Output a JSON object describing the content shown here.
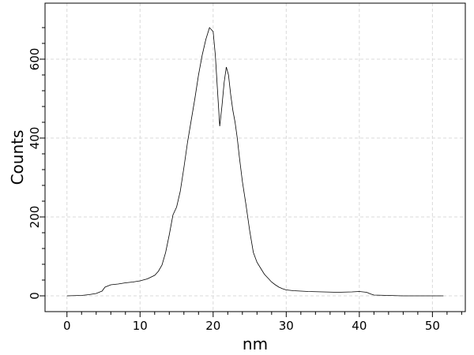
{
  "chart_data": {
    "type": "line",
    "title": "",
    "xlabel": "nm",
    "ylabel": "Counts",
    "xlim": [
      -3,
      54.5
    ],
    "ylim": [
      -40,
      742
    ],
    "grid": true,
    "x_ticks": [
      0,
      10,
      20,
      30,
      40,
      50
    ],
    "y_ticks": [
      0,
      200,
      400,
      600
    ],
    "series": [
      {
        "x": [
          0,
          2,
          3,
          4,
          4.8,
          5.2,
          6,
          7,
          8,
          9,
          10,
          11,
          12,
          12.5,
          13,
          13.5,
          14,
          14.5,
          15,
          15.5,
          16,
          16.5,
          17,
          17.5,
          18,
          18.5,
          19,
          19.5,
          20,
          20.3,
          20.6,
          20.9,
          21.2,
          21.5,
          21.8,
          22.1,
          22.4,
          22.7,
          23,
          23.3,
          23.6,
          24,
          24.5,
          25,
          25.5,
          26,
          26.5,
          27,
          27.5,
          28,
          28.5,
          29,
          29.5,
          30,
          31,
          32,
          33,
          35,
          37,
          39,
          40,
          41,
          41.5,
          42,
          44,
          46,
          48,
          50,
          51.5
        ],
        "y": [
          0,
          1,
          3,
          6,
          12,
          22,
          28,
          30,
          33,
          35,
          38,
          43,
          52,
          62,
          78,
          110,
          155,
          205,
          225,
          265,
          325,
          390,
          445,
          500,
          560,
          610,
          650,
          680,
          670,
          610,
          520,
          430,
          480,
          540,
          580,
          560,
          510,
          470,
          440,
          400,
          350,
          290,
          230,
          165,
          110,
          85,
          70,
          55,
          45,
          35,
          28,
          22,
          18,
          15,
          13,
          12,
          11,
          10,
          9,
          10,
          11,
          9,
          5,
          2,
          1,
          0,
          0,
          0,
          0
        ]
      }
    ]
  }
}
